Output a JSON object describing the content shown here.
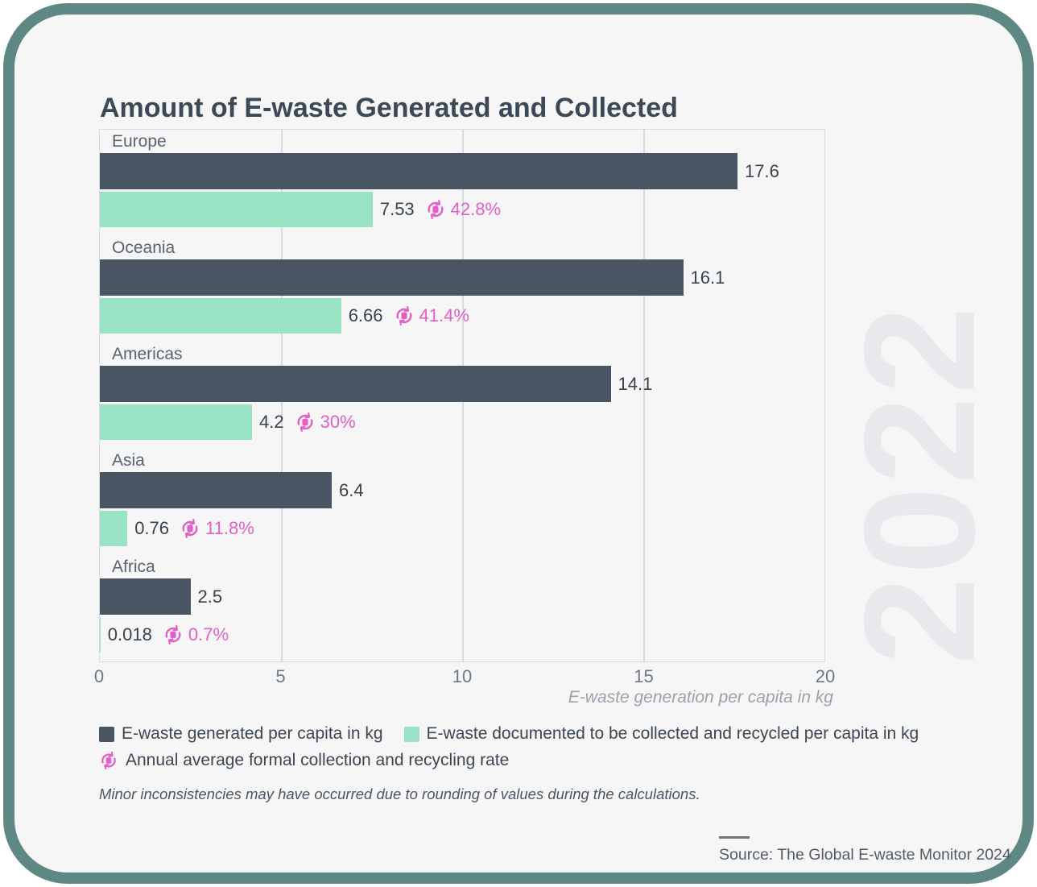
{
  "window": {
    "background": "#ffffff",
    "frame_color": "#5d8884",
    "card_background": "#f5f6f5"
  },
  "chart_data": {
    "type": "bar",
    "orientation": "horizontal",
    "title": "Amount of E-waste Generated and Collected",
    "xlabel": "E-waste generation per capita in kg",
    "xlim": [
      0,
      20
    ],
    "xticks": [
      0,
      5,
      10,
      15,
      20
    ],
    "grid": true,
    "legend_position": "bottom",
    "categories": [
      "Europe",
      "Oceania",
      "Americas",
      "Asia",
      "Africa"
    ],
    "series": [
      {
        "name": "E-waste generated per capita in kg",
        "color": "#4a5564",
        "values": [
          17.6,
          16.1,
          14.1,
          6.4,
          2.5
        ],
        "labels": [
          "17.6",
          "16.1",
          "14.1",
          "6.4",
          "2.5"
        ]
      },
      {
        "name": "E-waste documented to be collected and recycled per capita in kg",
        "color": "#9ae2c4",
        "values": [
          7.53,
          6.66,
          4.2,
          0.76,
          0.018
        ],
        "labels": [
          "7.53",
          "6.66",
          "4.2",
          "0.76",
          "0.018"
        ]
      }
    ],
    "rate_series": {
      "name": "Annual average formal collection and recycling rate",
      "color": "#e45fc6",
      "labels": [
        "42.8%",
        "41.4%",
        "30%",
        "11.8%",
        "0.7%"
      ]
    }
  },
  "legend": {
    "items": [
      {
        "label": "E-waste generated per capita in kg",
        "marker": "square",
        "color": "#4a5564"
      },
      {
        "label": "E-waste documented to be collected and recycled per capita in kg",
        "marker": "square",
        "color": "#9ae2c4"
      },
      {
        "label": "Annual average formal collection and recycling rate",
        "marker": "recycle-icon",
        "color": "#e45fc6"
      }
    ]
  },
  "notes": {
    "footnote": "Minor inconsistencies may have occurred due to rounding of values during the calculations."
  },
  "source": {
    "text": "Source: The Global E-waste Monitor 2024"
  },
  "watermark": {
    "year": "2022"
  }
}
